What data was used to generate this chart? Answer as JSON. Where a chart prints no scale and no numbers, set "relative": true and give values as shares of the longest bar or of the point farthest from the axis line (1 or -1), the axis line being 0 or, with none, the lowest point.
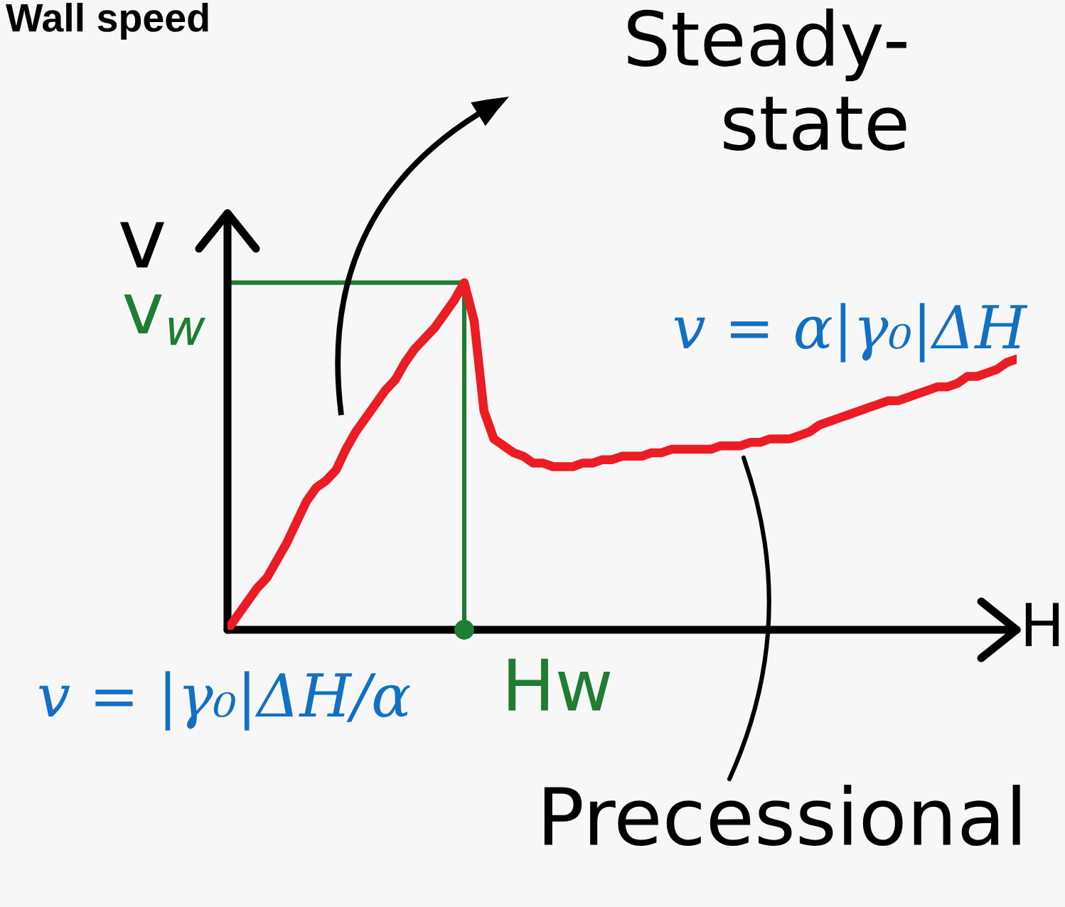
{
  "chart_data": {
    "type": "line",
    "title": "Wall speed",
    "xlabel": "H",
    "ylabel": "v",
    "relative": true,
    "categories": [
      null,
      null,
      null,
      null,
      null,
      null,
      null,
      null,
      null,
      null,
      null,
      null,
      null,
      null,
      null,
      null,
      null,
      null,
      null,
      null,
      null,
      null,
      null,
      null,
      null,
      null,
      null,
      null,
      null,
      null,
      null,
      null,
      null,
      null,
      null,
      null,
      null,
      null,
      null,
      null,
      null,
      null,
      null,
      null,
      null,
      null,
      null,
      null,
      null,
      null,
      null,
      null,
      null,
      null,
      null,
      null,
      null,
      null,
      null,
      null,
      null,
      null,
      null,
      null,
      null,
      null,
      null,
      null,
      null,
      null,
      null,
      null,
      null,
      null,
      null,
      null,
      null,
      null,
      null,
      null,
      null
    ],
    "series": [
      {
        "color": "#ec1c24",
        "values": [
          0,
          0.04,
          0.08,
          0.12,
          0.15,
          0.2,
          0.25,
          0.31,
          0.37,
          0.41,
          0.43,
          0.46,
          0.52,
          0.57,
          0.61,
          0.65,
          0.69,
          0.72,
          0.77,
          0.81,
          0.84,
          0.87,
          0.91,
          0.95,
          1,
          0.89,
          0.63,
          0.55,
          0.53,
          0.51,
          0.5,
          0.48,
          0.48,
          0.47,
          0.47,
          0.47,
          0.48,
          0.48,
          0.49,
          0.49,
          0.5,
          0.5,
          0.5,
          0.51,
          0.51,
          0.52,
          0.52,
          0.52,
          0.52,
          0.52,
          0.53,
          0.53,
          0.53,
          0.54,
          0.54,
          0.55,
          0.55,
          0.55,
          0.56,
          0.57,
          0.59,
          0.6,
          0.61,
          0.62,
          0.63,
          0.64,
          0.65,
          0.66,
          0.66,
          0.67,
          0.68,
          0.69,
          0.7,
          0.7,
          0.71,
          0.73,
          0.73,
          0.74,
          0.75,
          0.77,
          0.78
        ]
      }
    ],
    "ref_lines": [
      {
        "axis": "y",
        "value": 1,
        "label": "v$_{w}$",
        "color": "#1e7d32"
      }
    ],
    "annotations": [
      "Steady-\nstate",
      "v = α|γ₀|ΔH",
      "v = |γ₀|ΔH/α",
      "Hw",
      "Precessional"
    ]
  }
}
